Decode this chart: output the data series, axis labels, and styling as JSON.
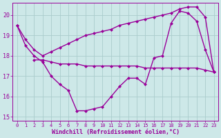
{
  "background_color": "#cde8e8",
  "grid_color": "#aacccc",
  "line_color": "#990099",
  "xlabel": "Windchill (Refroidissement éolien,°C)",
  "xlim": [
    -0.5,
    23.5
  ],
  "ylim": [
    14.8,
    20.6
  ],
  "yticks": [
    15,
    16,
    17,
    18,
    19,
    20
  ],
  "xticks": [
    0,
    1,
    2,
    3,
    4,
    5,
    6,
    7,
    8,
    9,
    10,
    11,
    12,
    13,
    14,
    15,
    16,
    17,
    18,
    19,
    20,
    21,
    22,
    23
  ],
  "line1_x": [
    0,
    1,
    2,
    3,
    4,
    5,
    6,
    7,
    8,
    9,
    10,
    11,
    12,
    13,
    14,
    15,
    16,
    17,
    18,
    19,
    20,
    21,
    22,
    23
  ],
  "line1_y": [
    19.5,
    18.8,
    18.3,
    18.0,
    18.2,
    18.4,
    18.6,
    18.8,
    19.0,
    19.1,
    19.2,
    19.3,
    19.5,
    19.6,
    19.7,
    19.8,
    19.9,
    20.0,
    20.1,
    20.3,
    20.4,
    20.4,
    19.9,
    17.2
  ],
  "line2_x": [
    2,
    3,
    4,
    5,
    6,
    7,
    8,
    9,
    10,
    11,
    12,
    13,
    14,
    15,
    16,
    17,
    18,
    19,
    20,
    21,
    22,
    23
  ],
  "line2_y": [
    17.8,
    17.8,
    17.7,
    17.6,
    17.6,
    17.6,
    17.5,
    17.5,
    17.5,
    17.5,
    17.5,
    17.5,
    17.5,
    17.4,
    17.4,
    17.4,
    17.4,
    17.4,
    17.4,
    17.4,
    17.3,
    17.2
  ],
  "line3_x": [
    0,
    1,
    2,
    3,
    4,
    5,
    6,
    7,
    8,
    9,
    10,
    11,
    12,
    13,
    14,
    15,
    16,
    17,
    18,
    19,
    20,
    21,
    22,
    23
  ],
  "line3_y": [
    19.5,
    18.5,
    18.0,
    17.7,
    17.0,
    16.6,
    16.3,
    15.3,
    15.3,
    15.4,
    15.5,
    16.0,
    16.5,
    16.9,
    16.9,
    16.6,
    17.9,
    18.0,
    19.6,
    20.2,
    20.1,
    19.7,
    18.3,
    17.2
  ]
}
